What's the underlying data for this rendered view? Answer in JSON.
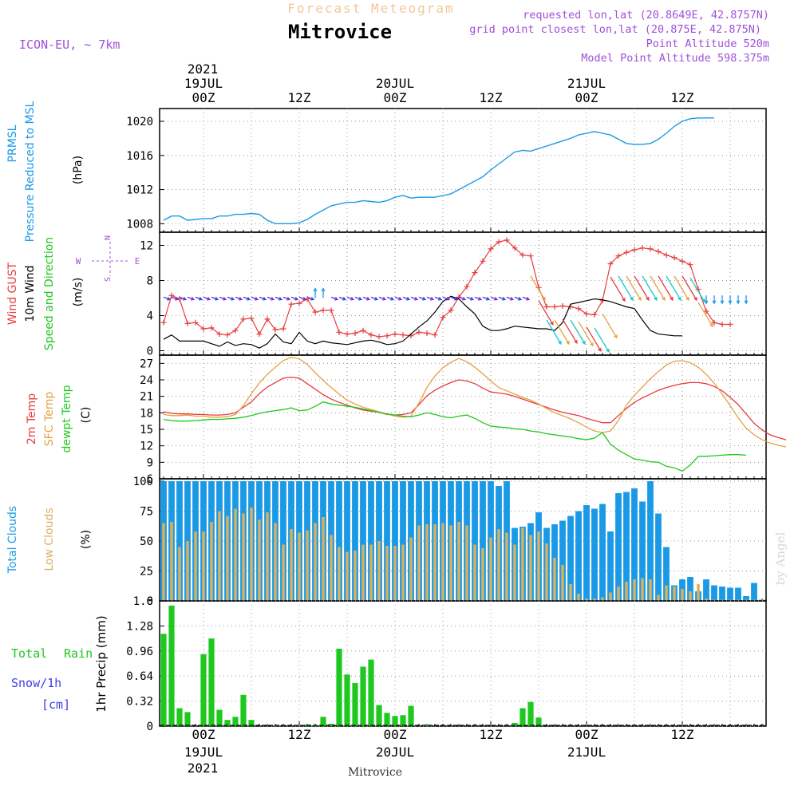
{
  "header": {
    "product": "Forecast Meteogram",
    "location": "Mitrovice",
    "model": "ICON-EU, ~ 7km",
    "requested": "requested lon,lat (20.8649E, 42.8757N)",
    "gridpoint": "grid point closest lon,lat (20.875E, 42.875N)",
    "point_alt": "Point Altitude 520m",
    "model_alt": "Model Point Altitude 598.375m",
    "footer": "Mitrovice",
    "watermark": "by Angel"
  },
  "time_axis": {
    "top_year": "2021",
    "ticks": [
      {
        "t": 0,
        "l1": "19JUL",
        "l2": "00Z"
      },
      {
        "t": 12,
        "l1": "",
        "l2": "12Z"
      },
      {
        "t": 24,
        "l1": "20JUL",
        "l2": "00Z"
      },
      {
        "t": 36,
        "l1": "",
        "l2": "12Z"
      },
      {
        "t": 48,
        "l1": "21JUL",
        "l2": "00Z"
      },
      {
        "t": 60,
        "l1": "",
        "l2": "12Z"
      }
    ],
    "bottom_year": "2021",
    "t_start": -5.5,
    "t_end": 70.5
  },
  "colors": {
    "pressure": "#1a9ae6",
    "gust": "#e63c3c",
    "wind": "#000000",
    "temp": "#e63c3c",
    "sfc": "#e6a040",
    "dewpt": "#1ec81e",
    "total_clouds": "#1a9ae6",
    "low_clouds": "#d8b060",
    "rain": "#1ec81e",
    "snow": "#3c3ce6",
    "meta": "#a050d8",
    "title_light": "#f0c896"
  },
  "chart_data": [
    {
      "id": "pressure",
      "type": "line",
      "label1": "PRMSL",
      "label2": "Pressure Reduced to MSL",
      "unit": "(hPa)",
      "ylim": [
        1007,
        1021.5
      ],
      "yticks": [
        1008,
        1012,
        1016,
        1020
      ],
      "t0": -5,
      "dt": 1,
      "series": [
        {
          "name": "PRMSL",
          "values": [
            1008.4,
            1008.9,
            1008.9,
            1008.4,
            1008.5,
            1008.6,
            1008.6,
            1008.9,
            1008.9,
            1009.1,
            1009.1,
            1009.2,
            1009.1,
            1008.4,
            1008.0,
            1008.0,
            1008.0,
            1008.1,
            1008.5,
            1009.1,
            1009.6,
            1010.1,
            1010.3,
            1010.5,
            1010.5,
            1010.7,
            1010.6,
            1010.5,
            1010.7,
            1011.1,
            1011.3,
            1011.0,
            1011.1,
            1011.1,
            1011.1,
            1011.3,
            1011.5,
            1012.0,
            1012.5,
            1013.0,
            1013.5,
            1014.3,
            1015.0,
            1015.7,
            1016.4,
            1016.6,
            1016.5,
            1016.8,
            1017.1,
            1017.4,
            1017.7,
            1018.0,
            1018.4,
            1018.6,
            1018.8,
            1018.6,
            1018.4,
            1017.9,
            1017.4,
            1017.3,
            1017.3,
            1017.4,
            1017.9,
            1018.6,
            1019.4,
            1020.0,
            1020.3,
            1020.4,
            1020.4,
            1020.4
          ]
        }
      ]
    },
    {
      "id": "wind",
      "type": "line",
      "label1": "Wind GUST",
      "label2": "10m Wind",
      "label3": "Speed and Direction",
      "unit": "(m/s)",
      "compass": [
        "N",
        "W",
        "E",
        "S"
      ],
      "ylim": [
        -0.5,
        13.5
      ],
      "yticks": [
        0,
        4,
        8,
        12
      ],
      "t0": -5,
      "dt": 1,
      "series": [
        {
          "name": "Wind GUST",
          "values": [
            3.2,
            6.3,
            5.9,
            3.1,
            3.2,
            2.5,
            2.6,
            1.9,
            1.8,
            2.3,
            3.6,
            3.7,
            1.9,
            3.6,
            2.4,
            2.5,
            5.3,
            5.4,
            5.9,
            4.4,
            4.6,
            4.6,
            2.1,
            1.9,
            2.0,
            2.3,
            1.8,
            1.6,
            1.7,
            1.9,
            1.8,
            1.7,
            2.1,
            2.0,
            1.8,
            3.8,
            4.6,
            6.1,
            7.3,
            8.9,
            10.2,
            11.6,
            12.4,
            12.6,
            11.7,
            10.9,
            10.8,
            7.2,
            5.0,
            5.0,
            5.1,
            5.0,
            4.8,
            4.2,
            4.1,
            5.7,
            9.9,
            10.8,
            11.2,
            11.5,
            11.7,
            11.6,
            11.3,
            10.9,
            10.6,
            10.2,
            9.8,
            7.0,
            4.5,
            3.2,
            3.0,
            3.0
          ]
        },
        {
          "name": "10m Wind",
          "values": [
            1.3,
            1.8,
            1.1,
            1.1,
            1.1,
            1.1,
            0.8,
            0.5,
            1.0,
            0.6,
            0.8,
            0.7,
            0.3,
            0.8,
            1.9,
            1.0,
            0.8,
            2.1,
            1.1,
            0.8,
            1.1,
            0.9,
            0.8,
            0.7,
            0.9,
            1.1,
            1.2,
            1.0,
            0.7,
            0.8,
            1.1,
            1.9,
            2.7,
            3.4,
            4.4,
            5.6,
            6.2,
            5.9,
            5.0,
            4.2,
            2.8,
            2.3,
            2.3,
            2.5,
            2.8,
            2.7,
            2.6,
            2.5,
            2.5,
            2.3,
            3.2,
            5.3,
            5.5,
            5.7,
            5.9,
            5.8,
            5.6,
            5.3,
            5.0,
            4.8,
            3.5,
            2.3,
            1.9,
            1.8,
            1.7,
            1.7
          ]
        }
      ],
      "barbs_t0": -5,
      "barbs_dt": 1,
      "barbs_dir": [
        "SE",
        "SE",
        "SE",
        "SE",
        "SE",
        "SE",
        "SE",
        "SE",
        "SE",
        "SE",
        "SE",
        "SE",
        "SE",
        "SE",
        "SE",
        "SE",
        "SE",
        "SE",
        "SE",
        "N",
        "N",
        "SE",
        "SE",
        "SE",
        "SE",
        "SE",
        "SE",
        "SE",
        "SE",
        "SE",
        "SE",
        "SE",
        "SE",
        "SE",
        "SE",
        "SE",
        "SE",
        "SE",
        "SE",
        "SE",
        "SE",
        "SE",
        "SE",
        "SE",
        "SE",
        "SE",
        "NW",
        "NW",
        "NW",
        "NW",
        "NW",
        "NW",
        "NW",
        "NW",
        "NW",
        "NW",
        "NW",
        "NW",
        "NW",
        "NW",
        "NW",
        "NW",
        "NW",
        "NW",
        "NW",
        "NW",
        "NW",
        "NW",
        "S",
        "S",
        "S",
        "S",
        "S",
        "S"
      ]
    },
    {
      "id": "temperature",
      "type": "line",
      "label1": "2m Temp",
      "label2": "SFC Temp",
      "label3": "dewpt Temp",
      "unit": "(C)",
      "ylim": [
        6,
        28.5
      ],
      "yticks": [
        6,
        9,
        12,
        15,
        18,
        21,
        24,
        27
      ],
      "t0": -5,
      "dt": 1,
      "series": [
        {
          "name": "2m Temp",
          "values": [
            18.2,
            17.9,
            17.8,
            17.8,
            17.7,
            17.7,
            17.6,
            17.6,
            17.7,
            18.0,
            19.0,
            20.0,
            21.5,
            22.7,
            23.5,
            24.3,
            24.5,
            24.3,
            23.3,
            22.3,
            21.3,
            20.5,
            19.9,
            19.4,
            18.9,
            18.5,
            18.3,
            18.1,
            17.7,
            17.6,
            17.7,
            18.0,
            19.5,
            21.1,
            22.1,
            22.9,
            23.5,
            24.0,
            23.8,
            23.3,
            22.5,
            21.8,
            21.6,
            21.4,
            21.0,
            20.5,
            20.0,
            19.5,
            19.0,
            18.5,
            18.1,
            17.8,
            17.5,
            17.0,
            16.6,
            16.2,
            16.2,
            17.5,
            18.8,
            19.9,
            20.7,
            21.4,
            22.1,
            22.6,
            23.0,
            23.3,
            23.5,
            23.5,
            23.3,
            22.8,
            22.0,
            20.8,
            19.5,
            17.8,
            16.1,
            14.9,
            14.0,
            13.5,
            13.1
          ]
        },
        {
          "name": "SFC Temp",
          "values": [
            17.7,
            17.5,
            17.5,
            17.6,
            17.4,
            17.4,
            17.2,
            17.2,
            17.3,
            17.7,
            19.3,
            21.5,
            23.4,
            25.0,
            26.3,
            27.5,
            28.1,
            27.8,
            26.8,
            25.3,
            23.9,
            22.6,
            21.4,
            20.3,
            19.6,
            19.0,
            18.6,
            18.2,
            17.8,
            17.4,
            17.2,
            17.4,
            19.8,
            22.6,
            24.7,
            26.2,
            27.2,
            27.9,
            27.3,
            26.3,
            25.1,
            23.8,
            22.6,
            22.0,
            21.4,
            20.8,
            20.3,
            19.6,
            18.8,
            18.0,
            17.5,
            16.9,
            16.2,
            15.4,
            14.7,
            14.4,
            14.7,
            16.6,
            19.4,
            21.2,
            22.7,
            24.2,
            25.5,
            26.7,
            27.4,
            27.5,
            27.1,
            26.3,
            25.0,
            23.4,
            21.4,
            19.3,
            17.1,
            15.2,
            14.0,
            13.1,
            12.5,
            12.1,
            11.8
          ]
        },
        {
          "name": "dewpt Temp",
          "values": [
            16.8,
            16.6,
            16.5,
            16.5,
            16.6,
            16.7,
            16.8,
            16.8,
            16.9,
            17.0,
            17.2,
            17.5,
            17.9,
            18.2,
            18.4,
            18.6,
            18.9,
            18.4,
            18.5,
            19.2,
            20.0,
            19.6,
            19.4,
            19.2,
            19.0,
            18.7,
            18.4,
            18.1,
            17.8,
            17.6,
            17.4,
            17.3,
            17.6,
            18.0,
            17.7,
            17.3,
            17.1,
            17.4,
            17.6,
            17.0,
            16.2,
            15.6,
            15.4,
            15.3,
            15.1,
            15.0,
            14.7,
            14.5,
            14.2,
            14.0,
            13.8,
            13.6,
            13.3,
            13.1,
            13.4,
            14.4,
            12.3,
            11.2,
            10.4,
            9.6,
            9.4,
            9.1,
            9.0,
            8.3,
            8.0,
            7.4,
            8.5,
            10.1,
            10.1,
            10.2,
            10.3,
            10.4,
            10.4,
            10.3
          ]
        }
      ]
    },
    {
      "id": "clouds",
      "type": "bar",
      "label1": "Total Clouds",
      "label2": "Low Clouds",
      "unit": "(%)",
      "ylim": [
        0,
        102
      ],
      "yticks": [
        0,
        25,
        50,
        75,
        100
      ],
      "t0": -5,
      "dt": 1,
      "series": [
        {
          "name": "Total Clouds",
          "values": [
            100,
            100,
            100,
            100,
            100,
            100,
            100,
            100,
            100,
            100,
            100,
            100,
            100,
            100,
            100,
            100,
            100,
            100,
            100,
            100,
            100,
            100,
            100,
            100,
            100,
            100,
            100,
            100,
            100,
            100,
            100,
            100,
            100,
            100,
            100,
            100,
            100,
            100,
            100,
            100,
            100,
            100,
            96,
            100,
            61,
            62,
            65,
            74,
            61,
            64,
            67,
            71,
            75,
            80,
            77,
            81,
            58,
            90,
            91,
            94,
            83,
            100,
            73,
            45,
            13,
            18,
            20,
            8,
            18,
            13,
            12,
            11,
            11,
            4,
            15,
            1,
            1,
            1,
            3
          ]
        },
        {
          "name": "Low Clouds",
          "values": [
            65,
            66,
            45,
            50,
            58,
            58,
            66,
            75,
            71,
            77,
            73,
            78,
            68,
            74,
            65,
            47,
            60,
            57,
            59,
            65,
            70,
            55,
            45,
            41,
            42,
            47,
            47,
            50,
            46,
            46,
            47,
            53,
            63,
            64,
            64,
            65,
            63,
            66,
            63,
            47,
            44,
            53,
            60,
            57,
            47,
            61,
            55,
            58,
            48,
            36,
            30,
            14,
            6,
            2,
            2,
            3,
            7,
            12,
            16,
            18,
            19,
            18,
            5,
            13,
            12,
            10,
            8,
            14,
            2,
            1,
            1,
            1,
            1,
            1,
            1,
            1,
            1,
            1,
            1
          ]
        }
      ]
    },
    {
      "id": "precip",
      "type": "bar",
      "label1": "Total",
      "label1b": "Rain",
      "label2": "Snow/1h",
      "label3": "[cm]",
      "unit": "1hr Precip (mm)",
      "ylim": [
        0,
        1.6
      ],
      "yticks": [
        "0",
        "0.32",
        "0.64",
        "0.96",
        "1.28",
        "1.6"
      ],
      "t0": -5,
      "dt": 1,
      "series": [
        {
          "name": "Rain",
          "values": [
            1.18,
            1.54,
            0.23,
            0.18,
            0.0,
            0.92,
            1.12,
            0.21,
            0.08,
            0.12,
            0.4,
            0.08,
            0.0,
            0.0,
            0.01,
            0.0,
            0.0,
            0.01,
            0.02,
            0.01,
            0.12,
            0.03,
            0.99,
            0.66,
            0.55,
            0.76,
            0.85,
            0.27,
            0.17,
            0.13,
            0.14,
            0.26,
            0.0,
            0.02,
            0.0,
            0.0,
            0.0,
            0.0,
            0.0,
            0.0,
            0.0,
            0.0,
            0.0,
            0.0,
            0.04,
            0.23,
            0.31,
            0.11,
            0.0,
            0.0,
            0.0,
            0.0,
            0.0,
            0.0,
            0.0,
            0.0,
            0.0,
            0.0,
            0.0,
            0.0,
            0.0,
            0.0,
            0.0,
            0.0,
            0.0,
            0.0,
            0.0,
            0.0,
            0.0,
            0.0,
            0.0,
            0.0,
            0.0,
            0.0
          ]
        },
        {
          "name": "Snow/1h",
          "values": []
        }
      ]
    }
  ]
}
